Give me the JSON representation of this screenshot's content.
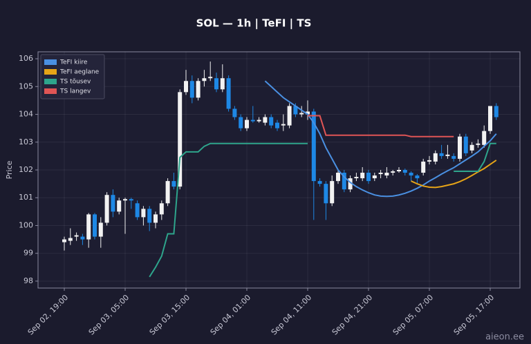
{
  "chart_data": {
    "type": "candlestick",
    "title": "SOL — 1h  |  TeFI  |  TS",
    "y_label": "Price",
    "watermark": "aieon.ee",
    "up_color": "#f2f2f2",
    "down_color": "#1e88e5",
    "grid": true,
    "legend": "upper left",
    "categories": [
      "Sep 02, 19:00",
      "Sep 02, 20:00",
      "Sep 02, 21:00",
      "Sep 02, 22:00",
      "Sep 02, 23:00",
      "Sep 03, 00:00",
      "Sep 03, 01:00",
      "Sep 03, 02:00",
      "Sep 03, 03:00",
      "Sep 03, 04:00",
      "Sep 03, 05:00",
      "Sep 03, 06:00",
      "Sep 03, 07:00",
      "Sep 03, 08:00",
      "Sep 03, 09:00",
      "Sep 03, 10:00",
      "Sep 03, 11:00",
      "Sep 03, 12:00",
      "Sep 03, 13:00",
      "Sep 03, 14:00",
      "Sep 03, 15:00",
      "Sep 03, 16:00",
      "Sep 03, 17:00",
      "Sep 03, 18:00",
      "Sep 03, 19:00",
      "Sep 03, 20:00",
      "Sep 03, 21:00",
      "Sep 03, 22:00",
      "Sep 03, 23:00",
      "Sep 04, 00:00",
      "Sep 04, 01:00",
      "Sep 04, 02:00",
      "Sep 04, 03:00",
      "Sep 04, 04:00",
      "Sep 04, 05:00",
      "Sep 04, 06:00",
      "Sep 04, 07:00",
      "Sep 04, 08:00",
      "Sep 04, 09:00",
      "Sep 04, 10:00",
      "Sep 04, 11:00",
      "Sep 04, 12:00",
      "Sep 04, 13:00",
      "Sep 04, 14:00",
      "Sep 04, 15:00",
      "Sep 04, 16:00",
      "Sep 04, 17:00",
      "Sep 04, 18:00",
      "Sep 04, 19:00",
      "Sep 04, 20:00",
      "Sep 04, 21:00",
      "Sep 04, 22:00",
      "Sep 04, 23:00",
      "Sep 05, 00:00",
      "Sep 05, 01:00",
      "Sep 05, 02:00",
      "Sep 05, 03:00",
      "Sep 05, 04:00",
      "Sep 05, 05:00",
      "Sep 05, 06:00",
      "Sep 05, 07:00",
      "Sep 05, 08:00",
      "Sep 05, 09:00",
      "Sep 05, 10:00",
      "Sep 05, 11:00",
      "Sep 05, 12:00",
      "Sep 05, 13:00",
      "Sep 05, 14:00",
      "Sep 05, 15:00",
      "Sep 05, 16:00",
      "Sep 05, 17:00",
      "Sep 05, 18:00"
    ],
    "open": [
      99.4,
      99.45,
      99.6,
      99.6,
      99.5,
      100.4,
      99.6,
      100.1,
      101.1,
      100.5,
      100.9,
      100.95,
      100.8,
      100.3,
      100.6,
      100.1,
      100.4,
      100.8,
      101.6,
      101.4,
      104.8,
      105.2,
      104.6,
      105.2,
      105.3,
      105.3,
      104.9,
      105.3,
      104.2,
      103.9,
      103.5,
      103.8,
      103.75,
      103.7,
      103.9,
      103.7,
      103.6,
      103.6,
      104.3,
      104.0,
      104.0,
      104.1,
      101.6,
      101.5,
      100.8,
      101.6,
      101.9,
      101.3,
      101.7,
      101.7,
      101.9,
      101.7,
      101.85,
      101.8,
      101.9,
      101.95,
      102.0,
      101.9,
      101.8,
      101.9,
      102.3,
      102.3,
      102.6,
      102.5,
      102.5,
      102.4,
      103.2,
      102.7,
      102.9,
      102.9,
      103.4,
      104.3
    ],
    "high": [
      99.6,
      99.9,
      99.75,
      99.7,
      100.45,
      100.45,
      100.3,
      101.2,
      101.3,
      101.0,
      101.0,
      101.0,
      100.9,
      100.7,
      100.7,
      100.5,
      100.9,
      101.7,
      101.9,
      104.9,
      105.6,
      105.4,
      105.3,
      105.6,
      105.9,
      105.5,
      105.8,
      105.4,
      104.3,
      104.0,
      103.9,
      104.3,
      103.9,
      104.0,
      104.0,
      103.8,
      104.0,
      104.4,
      104.4,
      104.3,
      104.5,
      104.2,
      101.7,
      101.6,
      101.8,
      102.0,
      102.0,
      101.8,
      101.9,
      102.1,
      102.0,
      101.9,
      102.0,
      102.1,
      102.0,
      102.1,
      102.05,
      101.95,
      101.85,
      102.4,
      102.5,
      102.7,
      102.9,
      102.9,
      102.6,
      103.3,
      103.3,
      103.0,
      103.1,
      103.6,
      104.3,
      104.4
    ],
    "low": [
      99.1,
      99.3,
      99.45,
      99.3,
      99.2,
      99.5,
      99.2,
      100.0,
      100.3,
      100.4,
      99.7,
      100.6,
      100.2,
      100.0,
      99.8,
      99.9,
      100.2,
      100.7,
      101.3,
      101.3,
      104.7,
      104.4,
      104.5,
      105.0,
      105.2,
      104.8,
      104.8,
      104.1,
      103.8,
      103.4,
      103.4,
      103.7,
      103.7,
      103.6,
      103.5,
      103.4,
      103.4,
      103.5,
      103.9,
      103.9,
      103.8,
      100.2,
      101.4,
      100.2,
      100.7,
      101.5,
      101.2,
      101.2,
      101.6,
      101.6,
      101.5,
      101.6,
      101.7,
      101.7,
      101.8,
      101.9,
      101.8,
      101.6,
      101.5,
      101.8,
      102.2,
      102.2,
      102.4,
      102.4,
      102.3,
      102.3,
      102.5,
      102.6,
      102.8,
      102.8,
      103.3,
      103.8
    ],
    "close": [
      99.5,
      99.55,
      99.65,
      99.5,
      100.4,
      99.6,
      100.1,
      101.1,
      100.5,
      100.9,
      100.95,
      100.9,
      100.3,
      100.6,
      100.1,
      100.4,
      100.8,
      101.6,
      101.4,
      104.8,
      105.2,
      104.6,
      105.2,
      105.3,
      105.35,
      104.9,
      105.3,
      104.2,
      103.9,
      103.5,
      103.8,
      103.75,
      103.8,
      103.9,
      103.6,
      103.5,
      103.65,
      104.3,
      104.0,
      104.05,
      104.1,
      101.6,
      101.5,
      100.8,
      101.6,
      101.9,
      101.3,
      101.7,
      101.75,
      101.9,
      101.6,
      101.8,
      101.9,
      101.9,
      101.95,
      102.0,
      101.9,
      101.8,
      101.7,
      102.3,
      102.35,
      102.6,
      102.5,
      102.55,
      102.4,
      103.2,
      102.6,
      102.9,
      102.95,
      103.4,
      104.3,
      103.9
    ],
    "series": [
      {
        "name": "TeFI kiire",
        "color": "#4a90e2",
        "values": [
          null,
          null,
          null,
          null,
          null,
          null,
          null,
          null,
          null,
          null,
          null,
          null,
          null,
          null,
          null,
          null,
          null,
          null,
          null,
          null,
          null,
          null,
          null,
          null,
          null,
          null,
          null,
          null,
          null,
          null,
          null,
          null,
          null,
          105.2,
          105.0,
          104.8,
          104.6,
          104.45,
          104.3,
          104.15,
          104.0,
          103.7,
          103.3,
          102.8,
          102.4,
          102.0,
          101.75,
          101.55,
          101.4,
          101.28,
          101.18,
          101.1,
          101.06,
          101.05,
          101.06,
          101.1,
          101.16,
          101.24,
          101.34,
          101.46,
          101.6,
          101.72,
          101.85,
          101.97,
          102.08,
          102.22,
          102.36,
          102.5,
          102.65,
          102.85,
          103.05,
          103.3
        ]
      },
      {
        "name": "TeFI aeglane",
        "color": "#e6a417",
        "values": [
          null,
          null,
          null,
          null,
          null,
          null,
          null,
          null,
          null,
          null,
          null,
          null,
          null,
          null,
          null,
          null,
          null,
          null,
          null,
          null,
          null,
          null,
          null,
          null,
          null,
          null,
          null,
          null,
          null,
          null,
          null,
          null,
          null,
          null,
          null,
          null,
          null,
          null,
          null,
          null,
          null,
          null,
          null,
          null,
          null,
          null,
          null,
          null,
          null,
          null,
          null,
          null,
          null,
          null,
          null,
          null,
          null,
          101.6,
          101.5,
          101.42,
          101.38,
          101.37,
          101.4,
          101.45,
          101.5,
          101.58,
          101.68,
          101.8,
          101.93,
          102.05,
          102.2,
          102.35
        ]
      },
      {
        "name": "TS tõusev",
        "color": "#2ea58c",
        "values": [
          null,
          null,
          null,
          null,
          null,
          null,
          null,
          null,
          null,
          null,
          null,
          null,
          null,
          null,
          98.15,
          98.5,
          98.9,
          99.7,
          99.7,
          102.45,
          102.65,
          102.65,
          102.65,
          102.85,
          102.95,
          102.95,
          102.95,
          102.95,
          102.95,
          102.95,
          102.95,
          102.95,
          102.95,
          102.95,
          102.95,
          102.95,
          102.95,
          102.95,
          102.95,
          102.95,
          102.95,
          null,
          null,
          null,
          null,
          null,
          null,
          null,
          null,
          null,
          null,
          null,
          null,
          null,
          null,
          null,
          null,
          null,
          null,
          null,
          null,
          null,
          null,
          null,
          101.95,
          101.95,
          101.95,
          101.95,
          101.95,
          102.3,
          102.95,
          102.95
        ]
      },
      {
        "name": "TS langev",
        "color": "#e05555",
        "values": [
          null,
          null,
          null,
          null,
          null,
          null,
          null,
          null,
          null,
          null,
          null,
          null,
          null,
          null,
          null,
          null,
          null,
          null,
          null,
          null,
          null,
          null,
          null,
          null,
          null,
          null,
          null,
          null,
          null,
          null,
          null,
          null,
          null,
          null,
          null,
          null,
          null,
          null,
          null,
          null,
          103.95,
          103.95,
          103.95,
          103.25,
          103.25,
          103.25,
          103.25,
          103.25,
          103.25,
          103.25,
          103.25,
          103.25,
          103.25,
          103.25,
          103.25,
          103.25,
          103.25,
          103.2,
          103.2,
          103.2,
          103.2,
          103.2,
          103.2,
          103.2,
          103.2,
          null,
          null,
          null,
          null,
          null,
          null,
          null
        ]
      }
    ],
    "ylim": [
      97.75,
      106.25
    ],
    "yticks": [
      98,
      99,
      100,
      101,
      102,
      103,
      104,
      105,
      106
    ],
    "xticks": [
      "Sep 02, 19:00",
      "Sep 03, 05:00",
      "Sep 03, 15:00",
      "Sep 04, 01:00",
      "Sep 04, 11:00",
      "Sep 04, 21:00",
      "Sep 05, 07:00",
      "Sep 05, 17:00"
    ]
  }
}
